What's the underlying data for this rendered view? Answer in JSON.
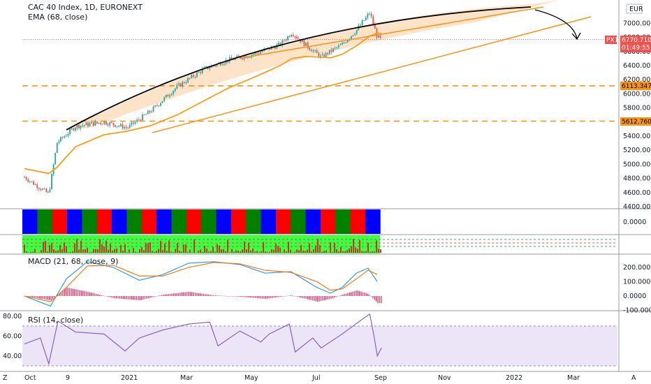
{
  "legend": {
    "main_title": "CAC 40 Index, 1D, EURONEXT",
    "ema_label": "EMA (68, close)",
    "macd_label": "MACD (21, 68, close, 9)",
    "rsi_label": "RSI (14, close)"
  },
  "currency": "EUR",
  "price_tag": {
    "symbol": "PX1",
    "value": "6770.7100",
    "countdown": "01:49:55"
  },
  "levels": {
    "upper": "6113.3477",
    "lower": "5612.7600"
  },
  "osc_zero_label": "0.0000",
  "colors": {
    "up": "#26a69a",
    "down": "#ef5350",
    "ema": "#f59e1b",
    "trend": "#f7931a",
    "level": "#f7931a",
    "arc": "#000000",
    "macd": "#2196f3",
    "signal": "#ff6d00",
    "rsi": "#7e57c2",
    "band_blue": "#0000ff",
    "band_red": "#ff0000",
    "band_green": "#008000"
  },
  "footer": {
    "left_label": "Z",
    "right_label": "A"
  },
  "chart_data": [
    {
      "type": "line",
      "panel": "price",
      "title": "CAC 40 Index, 1D, EURONEXT",
      "ylim": [
        4400,
        7200
      ],
      "y_ticks": [
        "7000.0000",
        "6800.0000",
        "6600.0000",
        "6400.0000",
        "6200.0000",
        "6000.0000",
        "5800.0000",
        "5600.0000",
        "5400.0000",
        "5200.0000",
        "5000.0000",
        "4800.0000",
        "4600.0000",
        "4400.0000"
      ],
      "x_ticks": [
        "Oct",
        "9",
        "2021",
        "Mar",
        "May",
        "Jul",
        "Sep",
        "Nov",
        "2022",
        "Mar"
      ],
      "x": [
        "2020-10-01",
        "2020-10-30",
        "2020-11-09",
        "2020-12-01",
        "2021-01-04",
        "2021-02-01",
        "2021-03-01",
        "2021-04-01",
        "2021-05-03",
        "2021-06-01",
        "2021-07-01",
        "2021-08-02",
        "2021-08-16",
        "2021-09-01",
        "2021-09-20",
        "2021-10-01",
        "2021-10-15",
        "2021-11-01",
        "2021-11-17",
        "2021-11-26",
        "2021-12-01"
      ],
      "series": [
        {
          "name": "close",
          "values": [
            4820,
            4580,
            5310,
            5540,
            5600,
            5520,
            5760,
            6100,
            6350,
            6480,
            6560,
            6700,
            6870,
            6700,
            6520,
            6600,
            6700,
            6900,
            7150,
            6800,
            6770
          ]
        },
        {
          "name": "EMA (68, close)",
          "values": [
            4940,
            4870,
            4960,
            5250,
            5420,
            5470,
            5550,
            5700,
            5900,
            6080,
            6230,
            6400,
            6500,
            6530,
            6520,
            6510,
            6560,
            6680,
            6820,
            6860,
            6860
          ]
        }
      ],
      "horizontal_levels": [
        6113.3477,
        5612.76
      ],
      "last_price": 6770.71
    },
    {
      "type": "heatmap",
      "panel": "trend state band",
      "y_ticks": [
        "0.0000"
      ],
      "colors_sequence": [
        "blue",
        "green",
        "red",
        "blue",
        "green",
        "red",
        "blue",
        "green",
        "red",
        "blue",
        "green",
        "red",
        "green",
        "blue",
        "red",
        "green",
        "blue",
        "red",
        "green",
        "blue",
        "red",
        "green",
        "red",
        "blue"
      ]
    },
    {
      "type": "bar",
      "panel": "MACD (21, 68, close, 9)",
      "ylim": [
        -100,
        250
      ],
      "y_ticks": [
        "200.0000",
        "100.0000",
        "0.0000",
        "-100.0000"
      ],
      "x": [
        "2020-10-01",
        "2020-11-01",
        "2020-11-20",
        "2020-12-15",
        "2021-01-15",
        "2021-02-15",
        "2021-03-15",
        "2021-04-15",
        "2021-05-15",
        "2021-06-15",
        "2021-07-15",
        "2021-08-15",
        "2021-09-15",
        "2021-10-01",
        "2021-10-15",
        "2021-11-01",
        "2021-11-15",
        "2021-11-26"
      ],
      "series": [
        {
          "name": "MACD",
          "values": [
            0,
            -70,
            120,
            240,
            200,
            110,
            150,
            230,
            240,
            220,
            160,
            170,
            60,
            20,
            60,
            160,
            195,
            100
          ]
        },
        {
          "name": "Signal",
          "values": [
            0,
            -40,
            60,
            210,
            215,
            140,
            140,
            200,
            235,
            225,
            180,
            165,
            100,
            40,
            50,
            120,
            180,
            150
          ]
        }
      ]
    },
    {
      "type": "line",
      "panel": "RSI (14, close)",
      "ylim": [
        33,
        82
      ],
      "y_ticks": [
        "80.00",
        "60.00",
        "40.00"
      ],
      "bands": [
        70,
        30
      ],
      "x": [
        "2020-10-01",
        "2020-10-20",
        "2020-10-30",
        "2020-11-10",
        "2020-12-01",
        "2021-01-04",
        "2021-01-29",
        "2021-02-15",
        "2021-03-15",
        "2021-04-15",
        "2021-05-10",
        "2021-05-20",
        "2021-06-15",
        "2021-07-10",
        "2021-07-20",
        "2021-08-13",
        "2021-08-20",
        "2021-09-10",
        "2021-09-20",
        "2021-10-15",
        "2021-11-10",
        "2021-11-17",
        "2021-11-22",
        "2021-11-26",
        "2021-12-01"
      ],
      "series": [
        {
          "name": "RSI",
          "values": [
            52,
            58,
            32,
            75,
            64,
            62,
            45,
            58,
            66,
            72,
            74,
            50,
            65,
            54,
            62,
            72,
            44,
            58,
            48,
            62,
            78,
            82,
            60,
            40,
            48
          ]
        }
      ]
    }
  ]
}
